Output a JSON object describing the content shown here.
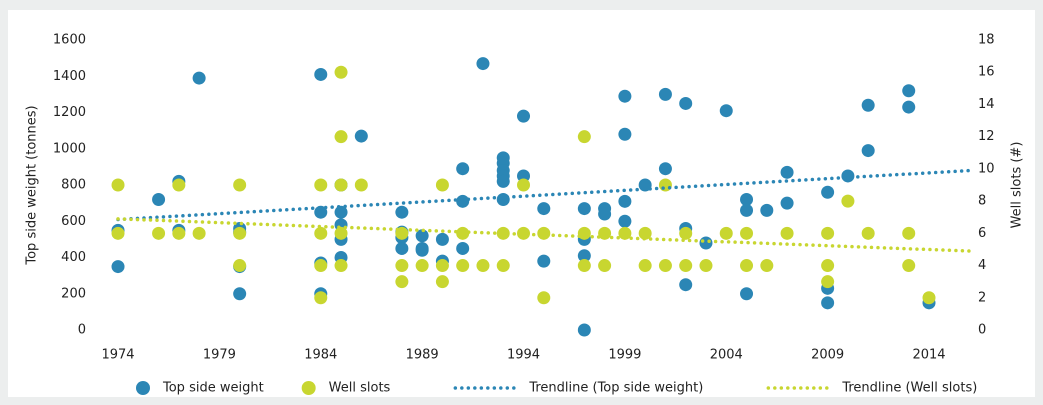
{
  "chart_data": {
    "type": "scatter",
    "ylabel": "Top side weight (tonnes)",
    "y2label": "Well slots (#)",
    "xlim": [
      1971,
      2018
    ],
    "xticks": [
      1974,
      1979,
      1984,
      1989,
      1994,
      1999,
      2004,
      2009,
      2014
    ],
    "ylim": [
      0,
      1600
    ],
    "yticks": [
      0,
      200,
      400,
      600,
      800,
      1000,
      1200,
      1400,
      1600
    ],
    "y2lim": [
      0,
      18
    ],
    "y2ticks": [
      0,
      2,
      4,
      6,
      8,
      10,
      12,
      14,
      16,
      18
    ],
    "legend": "bottom",
    "series": [
      {
        "name": "Top side weight",
        "color": "#2b86b5",
        "mark": "circle",
        "x": [
          1974,
          1974,
          1976,
          1977,
          1977,
          1978,
          1980,
          1980,
          1980,
          1980,
          1984,
          1984,
          1984,
          1984,
          1985,
          1985,
          1985,
          1985,
          1985,
          1986,
          1988,
          1988,
          1988,
          1988,
          1989,
          1989,
          1989,
          1990,
          1990,
          1991,
          1991,
          1991,
          1992,
          1993,
          1993,
          1993,
          1993,
          1993,
          1993,
          1994,
          1994,
          1995,
          1995,
          1997,
          1997,
          1997,
          1997,
          1998,
          1998,
          1999,
          1999,
          1999,
          1999,
          2000,
          2001,
          2001,
          2002,
          2002,
          2002,
          2003,
          2004,
          2005,
          2005,
          2005,
          2006,
          2007,
          2007,
          2009,
          2009,
          2009,
          2010,
          2011,
          2011,
          2013,
          2013,
          2014
        ],
        "values": [
          350,
          550,
          720,
          820,
          550,
          1390,
          560,
          540,
          350,
          200,
          1410,
          650,
          370,
          200,
          800,
          650,
          580,
          500,
          400,
          1070,
          650,
          540,
          510,
          450,
          520,
          450,
          440,
          500,
          380,
          890,
          710,
          450,
          1470,
          950,
          920,
          880,
          850,
          820,
          720,
          1180,
          850,
          670,
          380,
          670,
          500,
          410,
          0,
          670,
          640,
          1290,
          1080,
          710,
          600,
          800,
          1300,
          890,
          1250,
          560,
          250,
          480,
          1210,
          720,
          660,
          200,
          660,
          870,
          700,
          760,
          230,
          150,
          850,
          1240,
          990,
          1320,
          1230,
          150
        ]
      },
      {
        "name": "Well slots",
        "color": "#c8d630",
        "mark": "circle",
        "axis": "y2",
        "x": [
          1974,
          1974,
          1976,
          1977,
          1977,
          1978,
          1980,
          1980,
          1980,
          1984,
          1984,
          1984,
          1984,
          1985,
          1985,
          1985,
          1985,
          1985,
          1986,
          1988,
          1988,
          1988,
          1989,
          1990,
          1990,
          1990,
          1991,
          1991,
          1992,
          1993,
          1993,
          1994,
          1994,
          1995,
          1995,
          1997,
          1997,
          1997,
          1998,
          1998,
          1999,
          2000,
          2000,
          2001,
          2001,
          2002,
          2002,
          2003,
          2004,
          2005,
          2005,
          2006,
          2007,
          2009,
          2009,
          2009,
          2010,
          2011,
          2013,
          2013,
          2014
        ],
        "values": [
          9,
          6,
          6,
          9,
          6,
          6,
          9,
          6,
          4,
          9,
          6,
          4,
          2,
          16,
          12,
          9,
          6,
          4,
          9,
          6,
          4,
          3,
          4,
          9,
          4,
          3,
          6,
          4,
          4,
          6,
          4,
          9,
          6,
          6,
          2,
          12,
          6,
          4,
          6,
          4,
          6,
          6,
          4,
          9,
          4,
          6,
          4,
          4,
          6,
          6,
          4,
          4,
          6,
          6,
          4,
          3,
          8,
          6,
          6,
          4,
          2
        ]
      },
      {
        "name": "Trendline (Top side weight)",
        "color": "#2b86b5",
        "mark": "dotted-line",
        "x": [
          1974,
          2016
        ],
        "values": [
          610,
          880
        ]
      },
      {
        "name": "Trendline (Well slots)",
        "color": "#c8d630",
        "mark": "dotted-line",
        "axis": "y2",
        "x": [
          1974,
          2016
        ],
        "values": [
          6.9,
          4.9
        ]
      }
    ]
  }
}
